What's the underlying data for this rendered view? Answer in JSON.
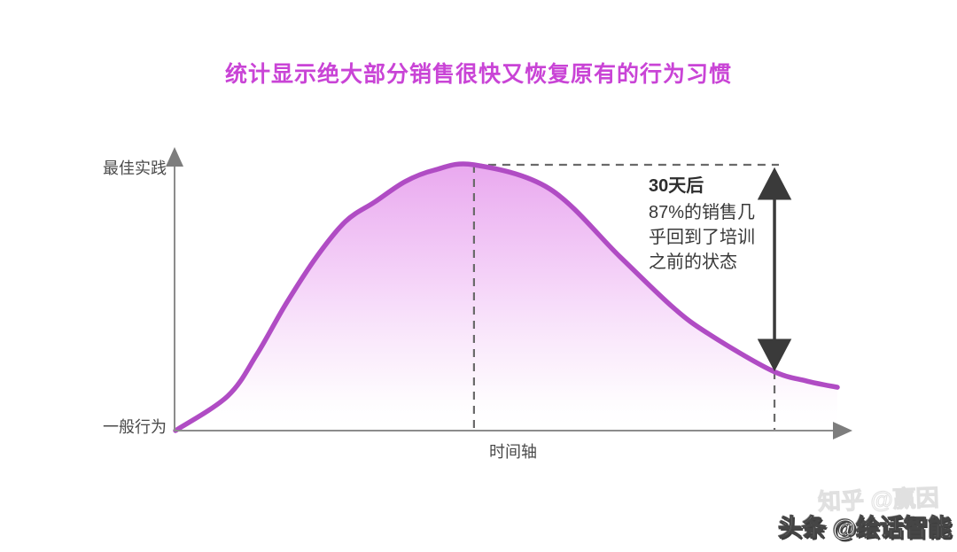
{
  "title": {
    "text": "统计显示绝大部分销售很快又恢复原有的行为习惯",
    "color": "#c944d6"
  },
  "chart_data": {
    "type": "area",
    "title": "统计显示绝大部分销售很快又恢复原有的行为习惯",
    "xlabel": "时间轴",
    "ylabel_top": "最佳实践",
    "ylabel_bottom": "一般行为",
    "x_range": [
      0,
      1
    ],
    "y_range": [
      0,
      1
    ],
    "grid": false,
    "legend": false,
    "series": [
      {
        "x": [
          0,
          0.079,
          0.123,
          0.167,
          0.213,
          0.257,
          0.301,
          0.347,
          0.391,
          0.451,
          0.565,
          0.672,
          0.752,
          0.806,
          0.9,
          0.953,
          1.0
        ],
        "y": [
          0.0,
          0.13,
          0.287,
          0.477,
          0.653,
          0.787,
          0.86,
          0.937,
          0.98,
          1.0,
          0.91,
          0.653,
          0.463,
          0.363,
          0.227,
          0.187,
          0.163
        ]
      }
    ],
    "markers": {
      "peak": {
        "x": 0.451,
        "y": 1.0
      },
      "day30": {
        "x": 0.905
      }
    },
    "annotation": {
      "heading": "30天后",
      "lines": [
        "87%的销售几",
        "乎回到了培训",
        "之前的状态"
      ]
    },
    "colors": {
      "curve_stroke": "#b04cc4",
      "fill_top": "#e8a4ee",
      "fill_mid": "#f4d0f8",
      "axis": "#8c8c8c",
      "dashed": "#6a6a6a",
      "arrow": "#3a3a3a",
      "label_text": "#4a4a4a",
      "title_text": "#c944d6"
    }
  },
  "watermark": {
    "primary": "头条 @绘话智能",
    "ghost": "知乎 @赢因"
  }
}
